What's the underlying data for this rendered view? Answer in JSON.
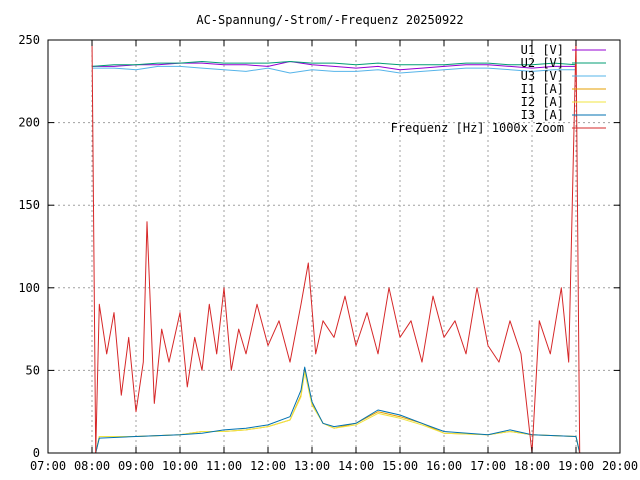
{
  "chart_data": {
    "type": "line",
    "title": "AC-Spannung/-Strom/-Frequenz 20250922",
    "xlabel": "",
    "ylabel": "",
    "x_range": [
      "07:00",
      "20:00"
    ],
    "x_ticks": [
      "07:00",
      "08:00",
      "09:00",
      "10:00",
      "11:00",
      "12:00",
      "13:00",
      "14:00",
      "15:00",
      "16:00",
      "17:00",
      "18:00",
      "19:00",
      "20:00"
    ],
    "ylim": [
      0,
      250
    ],
    "y_ticks": [
      0,
      50,
      100,
      150,
      200,
      250
    ],
    "grid": true,
    "legend_position": "top-right",
    "series": [
      {
        "name": "U1 [V]",
        "color": "#9400d3",
        "points": [
          [
            "08:00",
            234
          ],
          [
            "08:30",
            234
          ],
          [
            "09:00",
            235
          ],
          [
            "09:30",
            235
          ],
          [
            "10:00",
            236
          ],
          [
            "10:30",
            236
          ],
          [
            "11:00",
            235
          ],
          [
            "11:30",
            235
          ],
          [
            "12:00",
            234
          ],
          [
            "12:30",
            237
          ],
          [
            "13:00",
            235
          ],
          [
            "13:30",
            234
          ],
          [
            "14:00",
            233
          ],
          [
            "14:30",
            234
          ],
          [
            "15:00",
            232
          ],
          [
            "15:30",
            233
          ],
          [
            "16:00",
            234
          ],
          [
            "16:30",
            235
          ],
          [
            "17:00",
            235
          ],
          [
            "17:30",
            234
          ],
          [
            "18:00",
            233
          ],
          [
            "18:30",
            234
          ],
          [
            "19:00",
            234
          ]
        ]
      },
      {
        "name": "U2 [V]",
        "color": "#009e73",
        "points": [
          [
            "08:00",
            234
          ],
          [
            "08:30",
            235
          ],
          [
            "09:00",
            235
          ],
          [
            "09:30",
            236
          ],
          [
            "10:00",
            236
          ],
          [
            "10:30",
            237
          ],
          [
            "11:00",
            236
          ],
          [
            "11:30",
            236
          ],
          [
            "12:00",
            236
          ],
          [
            "12:30",
            237
          ],
          [
            "13:00",
            236
          ],
          [
            "13:30",
            236
          ],
          [
            "14:00",
            235
          ],
          [
            "14:30",
            236
          ],
          [
            "15:00",
            235
          ],
          [
            "15:30",
            235
          ],
          [
            "16:00",
            235
          ],
          [
            "16:30",
            236
          ],
          [
            "17:00",
            236
          ],
          [
            "17:30",
            235
          ],
          [
            "18:00",
            235
          ],
          [
            "18:30",
            236
          ],
          [
            "19:00",
            235
          ]
        ]
      },
      {
        "name": "U3 [V]",
        "color": "#56b4e9",
        "points": [
          [
            "08:00",
            233
          ],
          [
            "08:30",
            233
          ],
          [
            "09:00",
            232
          ],
          [
            "09:30",
            234
          ],
          [
            "10:00",
            234
          ],
          [
            "10:30",
            233
          ],
          [
            "11:00",
            232
          ],
          [
            "11:30",
            231
          ],
          [
            "12:00",
            233
          ],
          [
            "12:30",
            230
          ],
          [
            "13:00",
            232
          ],
          [
            "13:30",
            231
          ],
          [
            "14:00",
            231
          ],
          [
            "14:30",
            232
          ],
          [
            "15:00",
            230
          ],
          [
            "15:30",
            231
          ],
          [
            "16:00",
            232
          ],
          [
            "16:30",
            233
          ],
          [
            "17:00",
            233
          ],
          [
            "17:30",
            232
          ],
          [
            "18:00",
            231
          ],
          [
            "18:30",
            232
          ],
          [
            "19:00",
            232
          ]
        ]
      },
      {
        "name": "I1 [A]",
        "color": "#e69f00",
        "points": [
          [
            "08:05",
            0
          ],
          [
            "08:10",
            10
          ],
          [
            "09:00",
            10
          ],
          [
            "10:00",
            11
          ],
          [
            "10:30",
            13
          ],
          [
            "11:00",
            13
          ],
          [
            "11:30",
            14
          ],
          [
            "12:00",
            16
          ],
          [
            "12:30",
            20
          ],
          [
            "12:45",
            35
          ],
          [
            "12:50",
            50
          ],
          [
            "13:00",
            30
          ],
          [
            "13:15",
            18
          ],
          [
            "13:30",
            15
          ],
          [
            "14:00",
            18
          ],
          [
            "14:30",
            25
          ],
          [
            "15:00",
            22
          ],
          [
            "15:30",
            18
          ],
          [
            "16:00",
            12
          ],
          [
            "17:00",
            11
          ],
          [
            "17:30",
            13
          ],
          [
            "18:00",
            11
          ],
          [
            "19:00",
            10
          ],
          [
            "19:05",
            0
          ]
        ]
      },
      {
        "name": "I2 [A]",
        "color": "#f0e442",
        "points": [
          [
            "08:05",
            0
          ],
          [
            "08:10",
            10
          ],
          [
            "09:00",
            10
          ],
          [
            "10:00",
            11
          ],
          [
            "10:30",
            13
          ],
          [
            "11:00",
            13
          ],
          [
            "11:30",
            14
          ],
          [
            "12:00",
            16
          ],
          [
            "12:30",
            20
          ],
          [
            "12:45",
            34
          ],
          [
            "12:50",
            49
          ],
          [
            "13:00",
            29
          ],
          [
            "13:15",
            18
          ],
          [
            "13:30",
            15
          ],
          [
            "14:00",
            17
          ],
          [
            "14:30",
            24
          ],
          [
            "15:00",
            21
          ],
          [
            "15:30",
            17
          ],
          [
            "16:00",
            12
          ],
          [
            "17:00",
            11
          ],
          [
            "17:30",
            13
          ],
          [
            "18:00",
            11
          ],
          [
            "19:00",
            10
          ],
          [
            "19:05",
            0
          ]
        ]
      },
      {
        "name": "I3 [A]",
        "color": "#0072b2",
        "points": [
          [
            "08:05",
            0
          ],
          [
            "08:10",
            9
          ],
          [
            "09:00",
            10
          ],
          [
            "10:00",
            11
          ],
          [
            "10:30",
            12
          ],
          [
            "11:00",
            14
          ],
          [
            "11:30",
            15
          ],
          [
            "12:00",
            17
          ],
          [
            "12:30",
            22
          ],
          [
            "12:45",
            38
          ],
          [
            "12:50",
            52
          ],
          [
            "13:00",
            31
          ],
          [
            "13:15",
            18
          ],
          [
            "13:30",
            16
          ],
          [
            "14:00",
            18
          ],
          [
            "14:30",
            26
          ],
          [
            "15:00",
            23
          ],
          [
            "15:30",
            18
          ],
          [
            "16:00",
            13
          ],
          [
            "17:00",
            11
          ],
          [
            "17:30",
            14
          ],
          [
            "18:00",
            11
          ],
          [
            "19:00",
            10
          ],
          [
            "19:05",
            0
          ]
        ]
      },
      {
        "name": "Frequenz [Hz] 1000x Zoom",
        "color": "#d62728",
        "points": [
          [
            "08:00",
            250
          ],
          [
            "08:05",
            0
          ],
          [
            "08:10",
            90
          ],
          [
            "08:20",
            60
          ],
          [
            "08:30",
            85
          ],
          [
            "08:40",
            35
          ],
          [
            "08:50",
            70
          ],
          [
            "09:00",
            25
          ],
          [
            "09:10",
            55
          ],
          [
            "09:15",
            140
          ],
          [
            "09:25",
            30
          ],
          [
            "09:35",
            75
          ],
          [
            "09:45",
            55
          ],
          [
            "10:00",
            85
          ],
          [
            "10:10",
            40
          ],
          [
            "10:20",
            70
          ],
          [
            "10:30",
            50
          ],
          [
            "10:40",
            90
          ],
          [
            "10:50",
            60
          ],
          [
            "11:00",
            100
          ],
          [
            "11:10",
            50
          ],
          [
            "11:20",
            75
          ],
          [
            "11:30",
            60
          ],
          [
            "11:45",
            90
          ],
          [
            "12:00",
            65
          ],
          [
            "12:15",
            80
          ],
          [
            "12:30",
            55
          ],
          [
            "12:45",
            90
          ],
          [
            "12:55",
            115
          ],
          [
            "13:05",
            60
          ],
          [
            "13:15",
            80
          ],
          [
            "13:30",
            70
          ],
          [
            "13:45",
            95
          ],
          [
            "14:00",
            65
          ],
          [
            "14:15",
            85
          ],
          [
            "14:30",
            60
          ],
          [
            "14:45",
            100
          ],
          [
            "15:00",
            70
          ],
          [
            "15:15",
            80
          ],
          [
            "15:30",
            55
          ],
          [
            "15:45",
            95
          ],
          [
            "16:00",
            70
          ],
          [
            "16:15",
            80
          ],
          [
            "16:30",
            60
          ],
          [
            "16:45",
            100
          ],
          [
            "17:00",
            65
          ],
          [
            "17:15",
            55
          ],
          [
            "17:30",
            80
          ],
          [
            "17:45",
            60
          ],
          [
            "18:00",
            0
          ],
          [
            "18:10",
            80
          ],
          [
            "18:25",
            60
          ],
          [
            "18:40",
            100
          ],
          [
            "18:50",
            55
          ],
          [
            "19:00",
            250
          ],
          [
            "19:05",
            0
          ]
        ]
      }
    ]
  }
}
